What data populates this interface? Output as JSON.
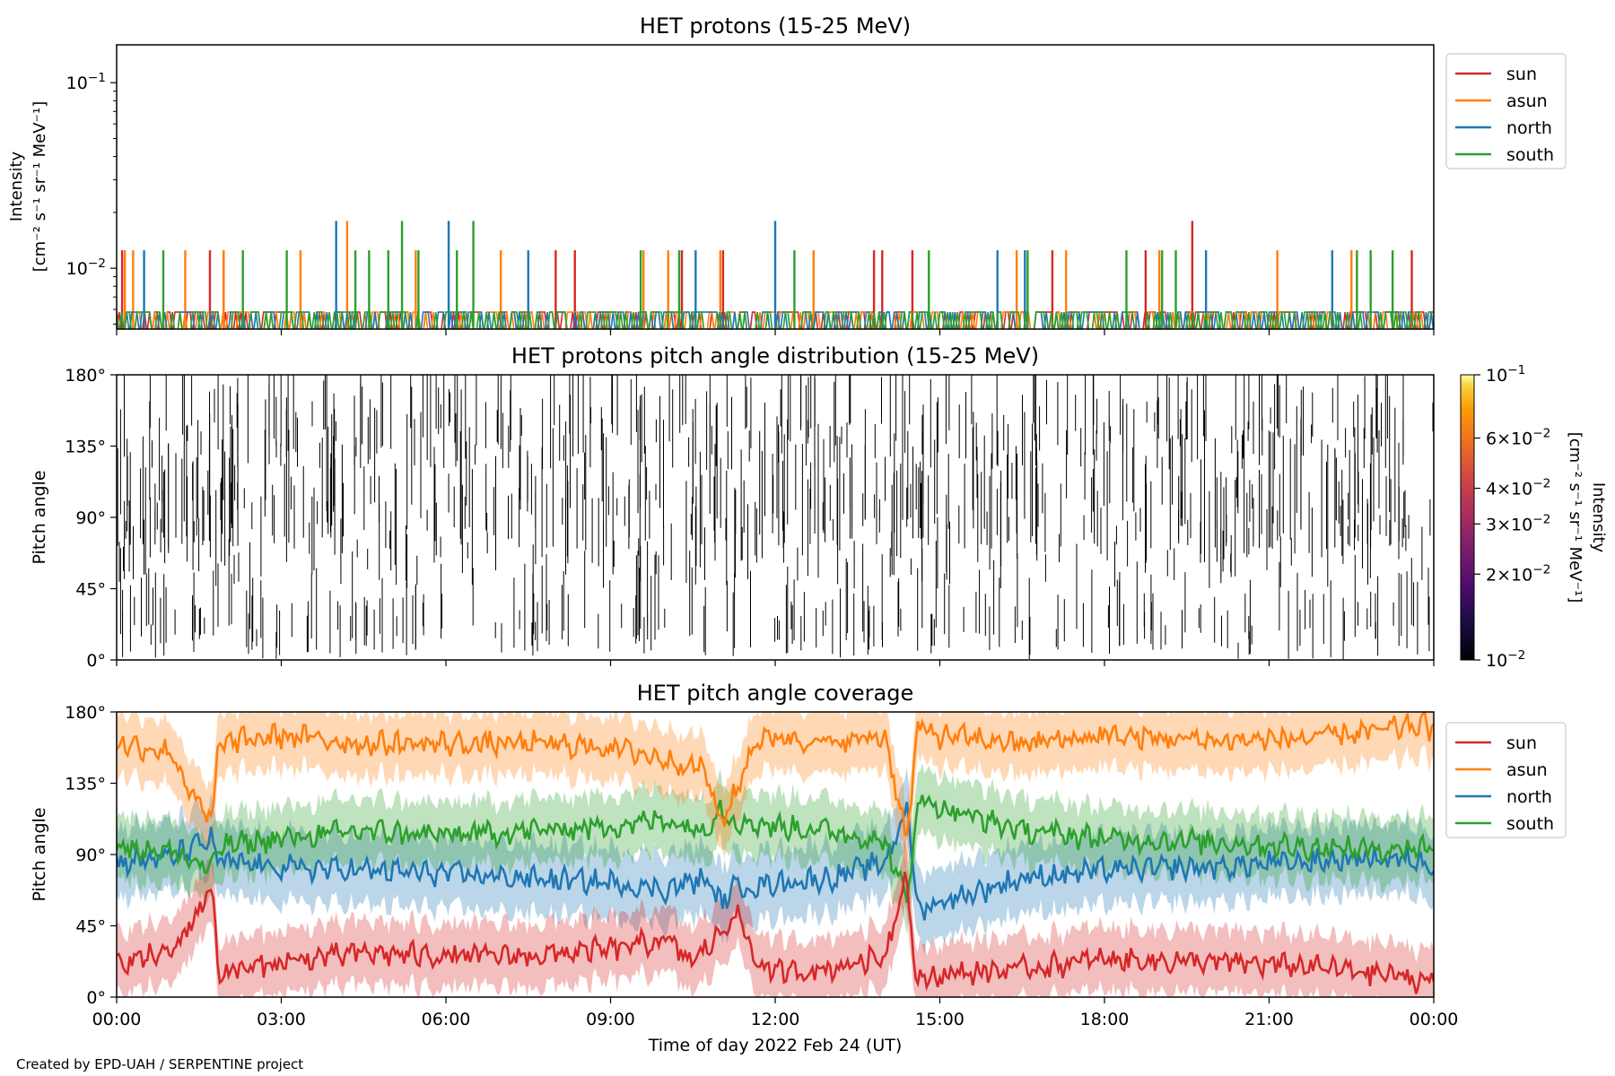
{
  "credit": "Created by EPD-UAH / SERPENTINE project",
  "colors": {
    "sun": "#d62728",
    "asun": "#ff7f0e",
    "north": "#1f77b4",
    "south": "#2ca02c"
  },
  "chart_data": [
    {
      "type": "line",
      "title": "HET protons (15-25 MeV)",
      "ylabel_line1": "Intensity",
      "ylabel_line2": "[cm⁻² s⁻¹ sr⁻¹ MeV⁻¹]",
      "yscale": "log",
      "ylim": [
        0.0047,
        0.16
      ],
      "yticks": [
        {
          "value": 0.1,
          "base": "10",
          "exp": "−1"
        },
        {
          "value": 0.01,
          "base": "10",
          "exp": "−2"
        }
      ],
      "xlim": [
        0,
        24
      ],
      "baseline": 0.0058,
      "legend": {
        "position": "upper right, outside",
        "entries": [
          "sun",
          "asun",
          "north",
          "south"
        ]
      },
      "series": [
        {
          "name": "sun",
          "color": "#d62728",
          "spikes": [
            [
              0.1,
              0.0125
            ],
            [
              1.7,
              0.0125
            ],
            [
              1.95,
              0.0125
            ],
            [
              8.0,
              0.0125
            ],
            [
              8.35,
              0.0125
            ],
            [
              10.3,
              0.0125
            ],
            [
              11.05,
              0.0125
            ],
            [
              13.8,
              0.0125
            ],
            [
              13.95,
              0.0125
            ],
            [
              14.5,
              0.0125
            ],
            [
              17.05,
              0.0125
            ],
            [
              18.75,
              0.0125
            ],
            [
              19.6,
              0.018
            ],
            [
              23.6,
              0.0125
            ]
          ]
        },
        {
          "name": "asun",
          "color": "#ff7f0e",
          "spikes": [
            [
              0.15,
              0.0125
            ],
            [
              0.3,
              0.0125
            ],
            [
              1.25,
              0.0125
            ],
            [
              1.95,
              0.0125
            ],
            [
              3.35,
              0.0125
            ],
            [
              4.2,
              0.018
            ],
            [
              5.45,
              0.0125
            ],
            [
              7.0,
              0.0125
            ],
            [
              9.6,
              0.0125
            ],
            [
              10.05,
              0.0125
            ],
            [
              11.0,
              0.0125
            ],
            [
              12.7,
              0.0125
            ],
            [
              16.4,
              0.0125
            ],
            [
              17.3,
              0.0125
            ],
            [
              19.0,
              0.0125
            ],
            [
              21.15,
              0.0125
            ],
            [
              22.5,
              0.0125
            ]
          ]
        },
        {
          "name": "north",
          "color": "#1f77b4",
          "spikes": [
            [
              0.5,
              0.0125
            ],
            [
              4.0,
              0.018
            ],
            [
              6.05,
              0.018
            ],
            [
              7.5,
              0.0125
            ],
            [
              10.55,
              0.0125
            ],
            [
              12.0,
              0.018
            ],
            [
              16.05,
              0.0125
            ],
            [
              16.55,
              0.0125
            ],
            [
              19.85,
              0.0125
            ],
            [
              22.15,
              0.0125
            ]
          ]
        },
        {
          "name": "south",
          "color": "#2ca02c",
          "spikes": [
            [
              0.85,
              0.0125
            ],
            [
              2.3,
              0.0125
            ],
            [
              3.1,
              0.0125
            ],
            [
              4.35,
              0.0125
            ],
            [
              4.6,
              0.0125
            ],
            [
              4.95,
              0.0125
            ],
            [
              5.2,
              0.018
            ],
            [
              5.5,
              0.0125
            ],
            [
              6.2,
              0.0125
            ],
            [
              6.5,
              0.018
            ],
            [
              9.55,
              0.0125
            ],
            [
              10.25,
              0.0125
            ],
            [
              12.35,
              0.0125
            ],
            [
              14.8,
              0.0125
            ],
            [
              16.6,
              0.0125
            ],
            [
              18.4,
              0.0125
            ],
            [
              19.05,
              0.0125
            ],
            [
              19.3,
              0.0125
            ],
            [
              22.6,
              0.0125
            ],
            [
              22.85,
              0.0125
            ],
            [
              23.25,
              0.0125
            ]
          ]
        }
      ]
    },
    {
      "type": "heatmap",
      "title": "HET protons pitch angle distribution (15-25 MeV)",
      "ylabel": "Pitch angle",
      "ylim": [
        0,
        180
      ],
      "yticks": [
        0,
        45,
        90,
        135,
        180
      ],
      "ytick_labels": [
        "0°",
        "45°",
        "90°",
        "135°",
        "180°"
      ],
      "xlim": [
        0,
        24
      ],
      "colorbar": {
        "label": "Intensity [cm⁻² s⁻¹ sr⁻¹ MeV⁻¹]",
        "label_line1": "Intensity",
        "label_line2": "[cm⁻² s⁻¹ sr⁻¹ MeV⁻¹]",
        "scale": "log",
        "range": [
          0.01,
          0.1
        ],
        "colormap": "inferno",
        "ticks": [
          {
            "value": 0.1,
            "base": "10",
            "exp": "−1",
            "coef": ""
          },
          {
            "value": 0.06,
            "base": "10",
            "exp": "−2",
            "coef": "6×"
          },
          {
            "value": 0.04,
            "base": "10",
            "exp": "−2",
            "coef": "4×"
          },
          {
            "value": 0.03,
            "base": "10",
            "exp": "−2",
            "coef": "3×"
          },
          {
            "value": 0.02,
            "base": "10",
            "exp": "−2",
            "coef": "2×"
          },
          {
            "value": 0.01,
            "base": "10",
            "exp": "−2",
            "coef": ""
          }
        ]
      },
      "note": "sparse vertical traces at near-minimum intensity"
    },
    {
      "type": "area",
      "title": "HET pitch angle coverage",
      "ylabel": "Pitch angle",
      "xlabel": "Time of day 2022 Feb 24 (UT)",
      "ylim": [
        0,
        180
      ],
      "yticks": [
        0,
        45,
        90,
        135,
        180
      ],
      "ytick_labels": [
        "0°",
        "45°",
        "90°",
        "135°",
        "180°"
      ],
      "xlim": [
        0,
        24
      ],
      "xticks": [
        0,
        3,
        6,
        9,
        12,
        15,
        18,
        21,
        24
      ],
      "xtick_labels": [
        "00:00",
        "03:00",
        "06:00",
        "09:00",
        "12:00",
        "15:00",
        "18:00",
        "21:00",
        "00:00"
      ],
      "legend": {
        "position": "upper right, outside",
        "entries": [
          "sun",
          "asun",
          "north",
          "south"
        ]
      },
      "series": [
        {
          "name": "sun",
          "color": "#d62728",
          "band_halfwidth": 20,
          "points": [
            [
              0,
              22
            ],
            [
              1,
              28
            ],
            [
              1.5,
              55
            ],
            [
              1.75,
              70
            ],
            [
              1.85,
              15
            ],
            [
              3,
              22
            ],
            [
              4.5,
              28
            ],
            [
              6,
              26
            ],
            [
              7.5,
              26
            ],
            [
              9,
              30
            ],
            [
              10,
              36
            ],
            [
              10.5,
              22
            ],
            [
              11,
              40
            ],
            [
              11.3,
              55
            ],
            [
              11.6,
              25
            ],
            [
              12,
              15
            ],
            [
              13,
              18
            ],
            [
              14,
              26
            ],
            [
              14.4,
              80
            ],
            [
              14.55,
              10
            ],
            [
              15,
              14
            ],
            [
              16.5,
              18
            ],
            [
              18,
              24
            ],
            [
              20,
              22
            ],
            [
              21.5,
              20
            ],
            [
              23,
              15
            ],
            [
              23.8,
              10
            ],
            [
              24,
              14
            ]
          ]
        },
        {
          "name": "asun",
          "color": "#ff7f0e",
          "band_halfwidth": 20,
          "points": [
            [
              0,
              160
            ],
            [
              1,
              155
            ],
            [
              1.4,
              125
            ],
            [
              1.75,
              110
            ],
            [
              1.85,
              160
            ],
            [
              3,
              165
            ],
            [
              4.5,
              160
            ],
            [
              6,
              160
            ],
            [
              7.5,
              160
            ],
            [
              9,
              158
            ],
            [
              10,
              150
            ],
            [
              10.7,
              145
            ],
            [
              11,
              110
            ],
            [
              11.3,
              130
            ],
            [
              11.6,
              160
            ],
            [
              12,
              165
            ],
            [
              13,
              160
            ],
            [
              14,
              165
            ],
            [
              14.4,
              100
            ],
            [
              14.6,
              170
            ],
            [
              15,
              165
            ],
            [
              16.5,
              160
            ],
            [
              18,
              165
            ],
            [
              20,
              162
            ],
            [
              21.5,
              163
            ],
            [
              23,
              168
            ],
            [
              23.8,
              172
            ],
            [
              24,
              168
            ]
          ]
        },
        {
          "name": "north",
          "color": "#1f77b4",
          "band_halfwidth": 22,
          "points": [
            [
              0,
              85
            ],
            [
              1,
              88
            ],
            [
              1.75,
              100
            ],
            [
              1.85,
              85
            ],
            [
              3,
              82
            ],
            [
              4.5,
              80
            ],
            [
              6,
              78
            ],
            [
              7.5,
              75
            ],
            [
              9,
              72
            ],
            [
              10,
              68
            ],
            [
              10.7,
              75
            ],
            [
              11,
              60
            ],
            [
              11.3,
              70
            ],
            [
              11.6,
              70
            ],
            [
              12,
              72
            ],
            [
              13,
              75
            ],
            [
              14,
              85
            ],
            [
              14.4,
              120
            ],
            [
              14.6,
              55
            ],
            [
              15,
              60
            ],
            [
              16.5,
              75
            ],
            [
              18,
              80
            ],
            [
              20,
              82
            ],
            [
              21.5,
              85
            ],
            [
              23,
              88
            ],
            [
              24,
              85
            ]
          ]
        },
        {
          "name": "south",
          "color": "#2ca02c",
          "band_halfwidth": 20,
          "points": [
            [
              0,
              95
            ],
            [
              1,
              92
            ],
            [
              1.75,
              80
            ],
            [
              1.85,
              95
            ],
            [
              3,
              100
            ],
            [
              4.5,
              105
            ],
            [
              6,
              102
            ],
            [
              7.5,
              105
            ],
            [
              9,
              108
            ],
            [
              10,
              112
            ],
            [
              10.7,
              105
            ],
            [
              11,
              120
            ],
            [
              11.3,
              110
            ],
            [
              11.6,
              110
            ],
            [
              12,
              108
            ],
            [
              13,
              105
            ],
            [
              14,
              98
            ],
            [
              14.4,
              60
            ],
            [
              14.6,
              125
            ],
            [
              15,
              120
            ],
            [
              16.5,
              105
            ],
            [
              18,
              100
            ],
            [
              20,
              98
            ],
            [
              21.5,
              95
            ],
            [
              23,
              93
            ],
            [
              24,
              95
            ]
          ]
        }
      ]
    }
  ]
}
